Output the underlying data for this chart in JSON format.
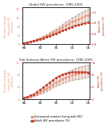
{
  "title_top": "Global HIV prevalence, 1985-2005",
  "title_bottom": "Sub-Saharan Africa HIV prevalence, 1985-2005",
  "years": [
    1985,
    1986,
    1987,
    1988,
    1989,
    1990,
    1991,
    1992,
    1993,
    1994,
    1995,
    1996,
    1997,
    1998,
    1999,
    2000,
    2001,
    2002,
    2003,
    2004,
    2005
  ],
  "global_number": [
    1.5,
    2.2,
    3.0,
    4.0,
    5.2,
    6.5,
    8.0,
    9.5,
    11.0,
    13.0,
    15.0,
    17.0,
    19.5,
    21.5,
    23.5,
    25.5,
    27.0,
    28.5,
    30.0,
    32.0,
    33.5
  ],
  "global_number_upper": [
    1.8,
    2.6,
    3.6,
    4.8,
    6.2,
    7.8,
    9.6,
    11.5,
    13.5,
    15.8,
    18.0,
    20.5,
    23.0,
    25.5,
    28.0,
    30.5,
    32.5,
    34.5,
    36.5,
    38.5,
    40.0
  ],
  "global_number_lower": [
    1.2,
    1.8,
    2.4,
    3.2,
    4.2,
    5.2,
    6.5,
    7.8,
    9.0,
    10.5,
    12.0,
    14.0,
    16.0,
    17.5,
    19.5,
    21.0,
    22.5,
    23.5,
    24.5,
    26.0,
    27.0
  ],
  "global_prev": [
    0.05,
    0.07,
    0.09,
    0.12,
    0.15,
    0.19,
    0.23,
    0.27,
    0.31,
    0.36,
    0.41,
    0.46,
    0.52,
    0.57,
    0.62,
    0.66,
    0.7,
    0.73,
    0.76,
    0.8,
    0.82
  ],
  "ssa_number": [
    0.8,
    1.3,
    2.0,
    3.0,
    4.2,
    5.5,
    7.0,
    8.5,
    10.0,
    11.8,
    13.5,
    15.0,
    16.5,
    17.5,
    18.5,
    19.5,
    20.5,
    21.0,
    21.5,
    22.0,
    22.5
  ],
  "ssa_number_upper": [
    1.0,
    1.6,
    2.5,
    3.7,
    5.2,
    6.8,
    8.6,
    10.5,
    12.5,
    14.5,
    16.8,
    18.5,
    20.5,
    21.8,
    23.0,
    24.2,
    25.5,
    26.2,
    27.0,
    27.5,
    28.0
  ],
  "ssa_number_lower": [
    0.6,
    1.0,
    1.5,
    2.3,
    3.3,
    4.3,
    5.5,
    6.8,
    8.0,
    9.5,
    10.8,
    12.0,
    13.2,
    14.0,
    14.8,
    15.5,
    16.2,
    16.5,
    17.0,
    17.5,
    18.0
  ],
  "ssa_prev": [
    0.5,
    0.8,
    1.2,
    1.7,
    2.4,
    3.1,
    3.9,
    4.7,
    5.5,
    6.3,
    7.0,
    7.6,
    8.1,
    8.4,
    8.7,
    8.8,
    8.9,
    8.9,
    8.9,
    8.8,
    8.7
  ],
  "color_number": "#E8967A",
  "color_prev": "#C0392B",
  "color_errbar": "#AAAAAA",
  "legend_number": "Estimated number living with HIV",
  "legend_prev": "Adult HIV prevalence (%)",
  "fig_bg": "#FFFFFF",
  "global_ylim_num": [
    0,
    42
  ],
  "global_ylim_prev": [
    0,
    1.4
  ],
  "global_yticks_num": [
    0,
    10,
    20,
    30,
    40
  ],
  "global_yticks_prev": [
    0.0,
    0.4,
    0.8,
    1.2
  ],
  "ssa_ylim_num": [
    0,
    30
  ],
  "ssa_ylim_prev": [
    0,
    12
  ],
  "ssa_yticks_num": [
    0,
    10,
    20,
    30
  ],
  "ssa_yticks_prev": [
    0,
    4,
    8,
    12
  ],
  "xtick_labels": [
    "85",
    "90",
    "95",
    "00",
    "05"
  ],
  "xtick_years": [
    1985,
    1990,
    1995,
    2000,
    2005
  ]
}
